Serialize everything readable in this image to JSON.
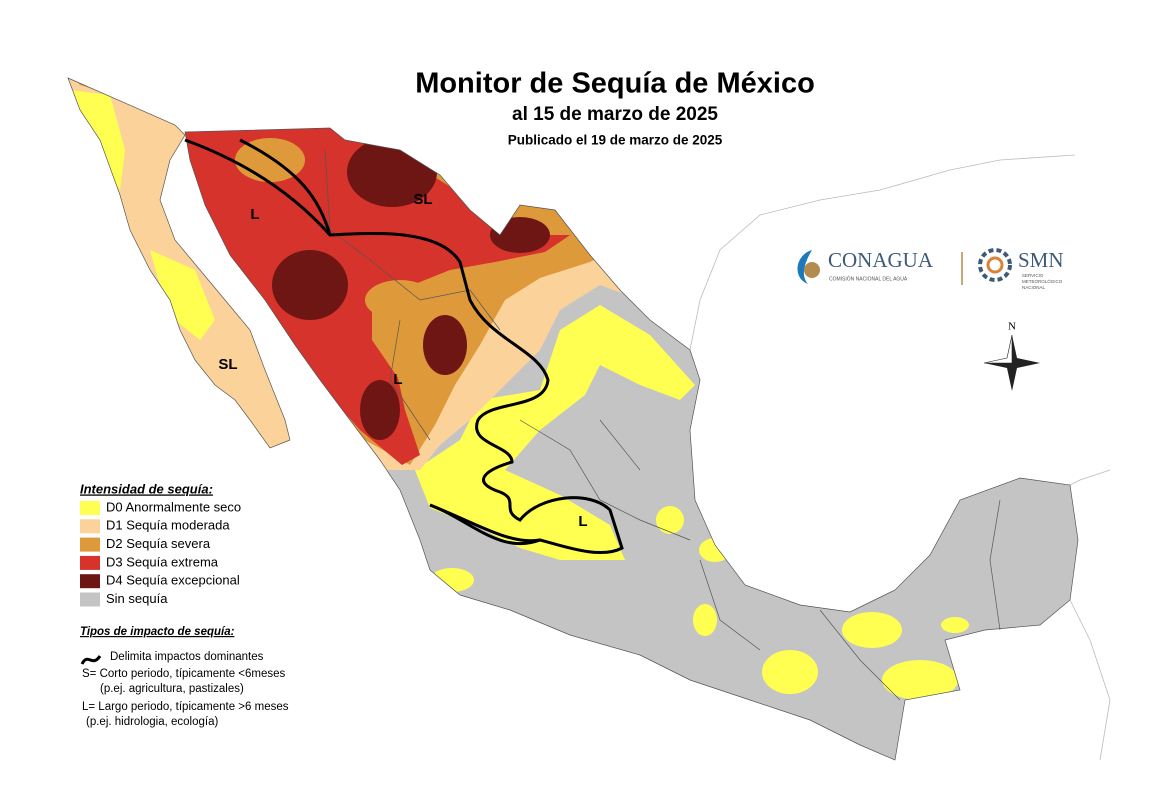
{
  "title": "Monitor de Sequía de México",
  "subtitle": "al 15 de marzo de 2025",
  "published": "Publicado el 19 de marzo de 2025",
  "legend": {
    "title": "Intensidad de sequía:",
    "items": [
      {
        "label": "D0 Anormalmente seco",
        "color": "#ffff52"
      },
      {
        "label": "D1 Sequía moderada",
        "color": "#fbd39a"
      },
      {
        "label": "D2 Sequía severa",
        "color": "#de9a3a"
      },
      {
        "label": "D3 Sequía extrema",
        "color": "#d5332b"
      },
      {
        "label": "D4 Sequía excepcional",
        "color": "#6e1614"
      },
      {
        "label": "Sin sequía",
        "color": "#c4c4c4"
      }
    ]
  },
  "impacts": {
    "title": "Tipos de impacto de sequía:",
    "items": [
      "Delimita impactos dominantes",
      "S= Corto periodo, típicamente <6meses",
      "(p.ej. agricultura, pastizales)",
      "L= Largo periodo, típicamente >6 meses",
      "(p.ej. hidrologia, ecología)"
    ]
  },
  "map_labels": [
    "L",
    "SL",
    "SL",
    "L",
    "L"
  ],
  "logos": {
    "conagua": "CONAGUA",
    "conagua_sub": "COMISIÓN NACIONAL DEL AGUA",
    "smn": "SMN",
    "smn_sub": [
      "SERVICIO",
      "METEOROLÓGICO",
      "NACIONAL"
    ]
  },
  "compass": "N"
}
